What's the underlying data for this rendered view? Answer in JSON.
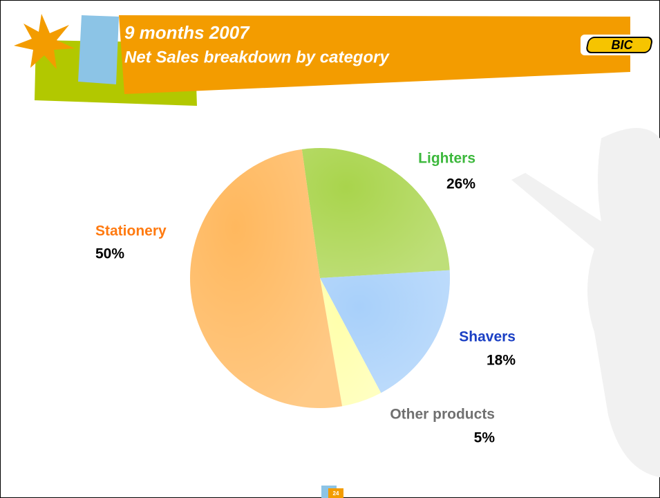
{
  "chart_data": {
    "type": "pie",
    "title": "9 months 2007",
    "subtitle": "Net Sales breakdown by category",
    "categories": [
      "Lighters",
      "Shavers",
      "Other products",
      "Stationery"
    ],
    "values": [
      26,
      18,
      5,
      50
    ],
    "value_labels": [
      "26%",
      "18%",
      "5%",
      "50%"
    ],
    "colors": [
      "#a9d44c",
      "#a8d0fa",
      "#ffffac",
      "#ffb85e"
    ],
    "label_colors": [
      "#3cb83c",
      "#1a3fc4",
      "#707070",
      "#ff7a10"
    ]
  },
  "slide": {
    "logo": "BIC",
    "page_number": "24"
  }
}
